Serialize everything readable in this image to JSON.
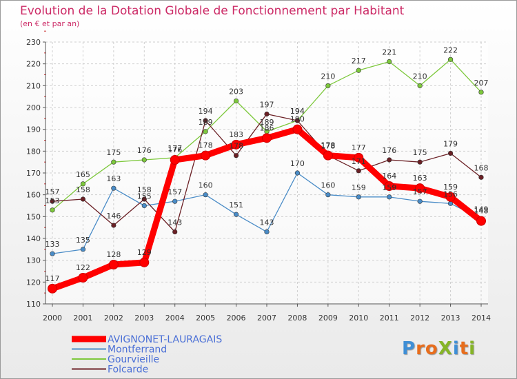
{
  "header": {
    "title": "Evolution de la Dotation Globale de Fonctionnement par Habitant",
    "subtitle": "(en € et par an)"
  },
  "logo": {
    "text": "ProXiti",
    "letters": [
      "P",
      "r",
      "o",
      "X",
      "i",
      "t",
      "i"
    ],
    "colors": [
      "#3f8fd6",
      "#e86d1c",
      "#e86d1c",
      "#86b527",
      "#3f8fd6",
      "#e86d1c",
      "#86b527"
    ]
  },
  "chart_data": {
    "type": "line",
    "title": "Evolution de la Dotation Globale de Fonctionnement par Habitant",
    "subtitle": "(en € et par an)",
    "x": [
      2000,
      2001,
      2002,
      2003,
      2004,
      2005,
      2006,
      2007,
      2008,
      2009,
      2010,
      2011,
      2012,
      2013,
      2014
    ],
    "ylim": [
      110,
      230
    ],
    "yticks": [
      110,
      120,
      130,
      140,
      150,
      160,
      170,
      180,
      190,
      200,
      210,
      220,
      230
    ],
    "grid": true,
    "legend": "bottom-left",
    "series": [
      {
        "name": "AVIGNONET-LAURAGAIS",
        "color": "#ff0000",
        "width": 9,
        "values": [
          117,
          122,
          128,
          129,
          176,
          178,
          183,
          186,
          190,
          178,
          177,
          164,
          163,
          159,
          148
        ],
        "labels": [
          "117",
          "122",
          "128",
          "129",
          "176",
          "178",
          "183",
          "186",
          "190",
          "178",
          "177",
          "164",
          "163",
          "159",
          "148"
        ]
      },
      {
        "name": "Montferrand",
        "color": "#4a8cc7",
        "width": 1.3,
        "values": [
          133,
          135,
          163,
          155,
          157,
          160,
          151,
          143,
          170,
          160,
          159,
          159,
          157,
          156,
          149
        ],
        "labels": [
          "133",
          "135",
          "163",
          "155",
          "157",
          "160",
          "151",
          "143",
          "170",
          "160",
          "159",
          "159",
          "157",
          "156",
          "149"
        ]
      },
      {
        "name": "Gourvieille",
        "color": "#7dc83c",
        "width": 1.3,
        "values": [
          153,
          165,
          175,
          176,
          177,
          189,
          203,
          189,
          194,
          210,
          217,
          221,
          210,
          222,
          207
        ],
        "labels": [
          "153",
          "165",
          "175",
          "176",
          "177",
          "189",
          "203",
          "189",
          "194",
          "210",
          "217",
          "221",
          "210",
          "222",
          "207"
        ]
      },
      {
        "name": "Folcarde",
        "color": "#6b2025",
        "width": 1.3,
        "values": [
          157,
          158,
          146,
          158,
          143,
          194,
          178,
          197,
          194,
          178,
          171,
          176,
          175,
          179,
          168
        ],
        "labels": [
          "157",
          "158",
          "146",
          "158",
          "143",
          "194",
          "178",
          "197",
          "194",
          "178",
          "171",
          "176",
          "175",
          "179",
          "168"
        ]
      }
    ]
  }
}
